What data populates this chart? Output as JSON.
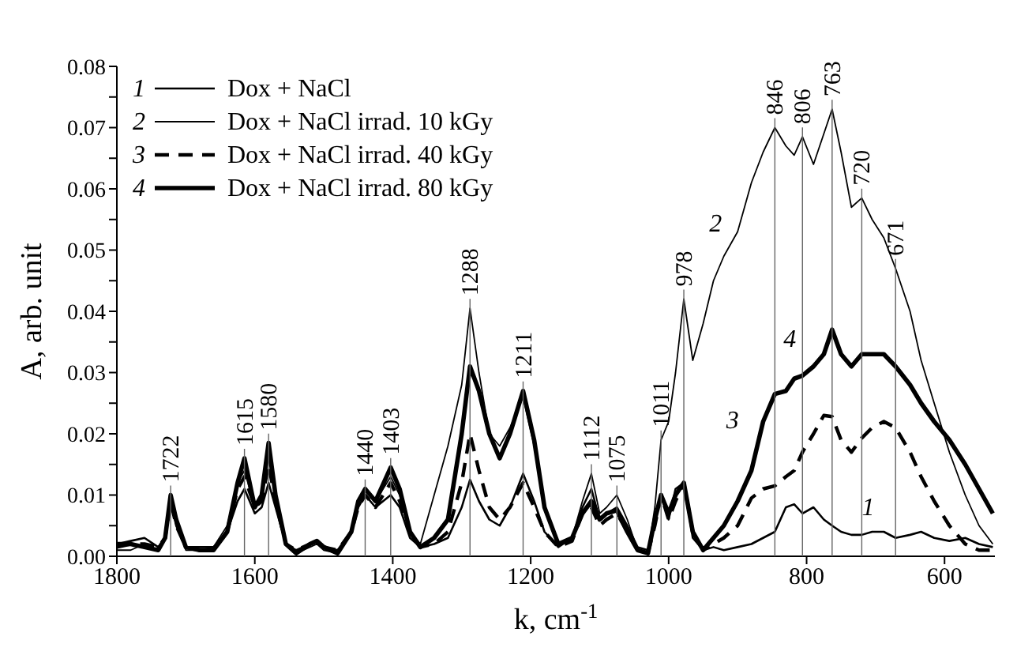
{
  "chart_data": {
    "type": "line",
    "xlabel": "k, cm$^{-1}$",
    "ylabel": "A, arb. unit",
    "x": [
      1800,
      1780,
      1760,
      1740,
      1730,
      1722,
      1714,
      1700,
      1680,
      1660,
      1640,
      1625,
      1615,
      1600,
      1590,
      1580,
      1570,
      1555,
      1540,
      1520,
      1510,
      1500,
      1480,
      1460,
      1450,
      1440,
      1425,
      1403,
      1390,
      1375,
      1360,
      1340,
      1320,
      1300,
      1288,
      1275,
      1260,
      1245,
      1230,
      1211,
      1195,
      1180,
      1160,
      1140,
      1125,
      1112,
      1100,
      1090,
      1075,
      1060,
      1045,
      1030,
      1020,
      1011,
      1000,
      990,
      978,
      965,
      950,
      935,
      920,
      900,
      880,
      863,
      846,
      830,
      818,
      806,
      790,
      775,
      763,
      750,
      735,
      720,
      705,
      688,
      671,
      650,
      634,
      615,
      593,
      570,
      550,
      530
    ],
    "series": [
      {
        "name": "Dox + NaCl",
        "color": "#000000",
        "values": [
          0.002,
          0.0025,
          0.003,
          0.0015,
          0.003,
          0.009,
          0.005,
          0.0015,
          0.0015,
          0.0015,
          0.004,
          0.009,
          0.011,
          0.007,
          0.008,
          0.012,
          0.008,
          0.002,
          0.001,
          0.002,
          0.0025,
          0.0015,
          0.001,
          0.004,
          0.008,
          0.01,
          0.008,
          0.01,
          0.008,
          0.003,
          0.0015,
          0.002,
          0.003,
          0.008,
          0.0125,
          0.009,
          0.006,
          0.005,
          0.008,
          0.0135,
          0.009,
          0.004,
          0.0015,
          0.003,
          0.008,
          0.011,
          0.006,
          0.007,
          0.008,
          0.005,
          0.0015,
          0.001,
          0.006,
          0.01,
          0.006,
          0.011,
          0.012,
          0.003,
          0.001,
          0.0015,
          0.001,
          0.0015,
          0.002,
          0.003,
          0.004,
          0.008,
          0.0085,
          0.007,
          0.008,
          0.006,
          0.005,
          0.004,
          0.0035,
          0.0035,
          0.004,
          0.004,
          0.003,
          0.0035,
          0.004,
          0.003,
          0.0025,
          0.003,
          0.002,
          0.0015
        ]
      },
      {
        "name": "Dox + NaCl irrad. 10 kGy",
        "color": "#000000",
        "values": [
          0.001,
          0.001,
          0.002,
          0.001,
          0.003,
          0.0095,
          0.005,
          0.001,
          0.001,
          0.0015,
          0.005,
          0.012,
          0.014,
          0.008,
          0.01,
          0.016,
          0.01,
          0.002,
          0.0005,
          0.0015,
          0.002,
          0.001,
          0.0005,
          0.004,
          0.009,
          0.011,
          0.009,
          0.013,
          0.01,
          0.004,
          0.002,
          0.01,
          0.018,
          0.028,
          0.0405,
          0.03,
          0.02,
          0.018,
          0.021,
          0.026,
          0.018,
          0.008,
          0.002,
          0.003,
          0.009,
          0.0135,
          0.007,
          0.008,
          0.01,
          0.006,
          0.001,
          0.0005,
          0.008,
          0.019,
          0.022,
          0.03,
          0.042,
          0.032,
          0.038,
          0.045,
          0.049,
          0.053,
          0.061,
          0.066,
          0.07,
          0.067,
          0.0655,
          0.0685,
          0.064,
          0.069,
          0.073,
          0.066,
          0.057,
          0.0585,
          0.055,
          0.052,
          0.047,
          0.04,
          0.032,
          0.025,
          0.017,
          0.01,
          0.005,
          0.002
        ]
      },
      {
        "name": "Dox + NaCl irrad. 40 kGy",
        "color": "#000000",
        "line_style": "dashed",
        "values": [
          0.0015,
          0.002,
          0.002,
          0.0015,
          0.003,
          0.009,
          0.005,
          0.0015,
          0.001,
          0.001,
          0.004,
          0.011,
          0.013,
          0.008,
          0.009,
          0.015,
          0.009,
          0.002,
          0.001,
          0.002,
          0.0025,
          0.0015,
          0.001,
          0.004,
          0.008,
          0.01,
          0.008,
          0.012,
          0.009,
          0.004,
          0.0015,
          0.002,
          0.004,
          0.012,
          0.02,
          0.014,
          0.008,
          0.006,
          0.008,
          0.012,
          0.008,
          0.004,
          0.0015,
          0.0025,
          0.007,
          0.008,
          0.005,
          0.006,
          0.007,
          0.004,
          0.001,
          0.0005,
          0.005,
          0.01,
          0.006,
          0.009,
          0.012,
          0.004,
          0.001,
          0.002,
          0.003,
          0.005,
          0.0095,
          0.011,
          0.0115,
          0.013,
          0.014,
          0.017,
          0.02,
          0.023,
          0.0228,
          0.019,
          0.017,
          0.0193,
          0.021,
          0.022,
          0.021,
          0.017,
          0.013,
          0.009,
          0.005,
          0.002,
          0.001,
          0.001
        ]
      },
      {
        "name": "Dox + NaCl irrad. 80 kGy",
        "color": "#000000",
        "values": [
          0.002,
          0.002,
          0.0015,
          0.001,
          0.003,
          0.01,
          0.006,
          0.0015,
          0.001,
          0.001,
          0.004,
          0.012,
          0.016,
          0.008,
          0.01,
          0.0185,
          0.01,
          0.002,
          0.0005,
          0.002,
          0.0025,
          0.0015,
          0.0005,
          0.004,
          0.009,
          0.011,
          0.009,
          0.0145,
          0.011,
          0.004,
          0.0015,
          0.003,
          0.006,
          0.02,
          0.031,
          0.027,
          0.02,
          0.016,
          0.02,
          0.027,
          0.019,
          0.008,
          0.002,
          0.003,
          0.007,
          0.009,
          0.006,
          0.007,
          0.0075,
          0.004,
          0.001,
          0.0005,
          0.006,
          0.01,
          0.007,
          0.01,
          0.012,
          0.004,
          0.001,
          0.003,
          0.005,
          0.009,
          0.014,
          0.022,
          0.0265,
          0.027,
          0.029,
          0.0295,
          0.031,
          0.033,
          0.037,
          0.033,
          0.031,
          0.033,
          0.033,
          0.033,
          0.031,
          0.028,
          0.025,
          0.022,
          0.019,
          0.015,
          0.011,
          0.007
        ]
      }
    ],
    "annotations": [
      "1",
      "2",
      "3",
      "4"
    ],
    "ref_lines": [
      {
        "axis": "x",
        "value": 1722,
        "label": "1722"
      },
      {
        "axis": "x",
        "value": 1615,
        "label": "1615"
      },
      {
        "axis": "x",
        "value": 1580,
        "label": "1580"
      },
      {
        "axis": "x",
        "value": 1440,
        "label": "1440"
      },
      {
        "axis": "x",
        "value": 1403,
        "label": "1403"
      },
      {
        "axis": "x",
        "value": 1288,
        "label": "1288"
      },
      {
        "axis": "x",
        "value": 1211,
        "label": "1211"
      },
      {
        "axis": "x",
        "value": 1112,
        "label": "1112"
      },
      {
        "axis": "x",
        "value": 1075,
        "label": "1075"
      },
      {
        "axis": "x",
        "value": 1011,
        "label": "1011"
      },
      {
        "axis": "x",
        "value": 978,
        "label": "978"
      },
      {
        "axis": "x",
        "value": 846,
        "label": "846"
      },
      {
        "axis": "x",
        "value": 806,
        "label": "806"
      },
      {
        "axis": "x",
        "value": 763,
        "label": "763"
      },
      {
        "axis": "x",
        "value": 720,
        "label": "720"
      },
      {
        "axis": "x",
        "value": 671,
        "label": "671"
      }
    ],
    "xlim": [
      1800,
      527
    ],
    "xticks": [
      1800,
      1600,
      1400,
      1200,
      1000,
      800,
      600
    ],
    "ylim": [
      0,
      0.08
    ],
    "yticks": [
      {
        "value": 0,
        "label": "0.00"
      },
      {
        "value": 0.005,
        "label": null
      },
      {
        "value": 0.01,
        "label": "0.01"
      },
      {
        "value": 0.015,
        "label": null
      },
      {
        "value": 0.02,
        "label": "0.02"
      },
      {
        "value": 0.025,
        "label": null
      },
      {
        "value": 0.03,
        "label": "0.03"
      },
      {
        "value": 0.035,
        "label": null
      },
      {
        "value": 0.04,
        "label": "0.04"
      },
      {
        "value": 0.045,
        "label": null
      },
      {
        "value": 0.05,
        "label": "0.05"
      },
      {
        "value": 0.055,
        "label": null
      },
      {
        "value": 0.06,
        "label": "0.06"
      },
      {
        "value": 0.065,
        "label": null
      },
      {
        "value": 0.07,
        "label": "0.07"
      },
      {
        "value": 0.075,
        "label": null
      },
      {
        "value": 0.08,
        "label": "0.08"
      }
    ],
    "legend": "top left"
  }
}
